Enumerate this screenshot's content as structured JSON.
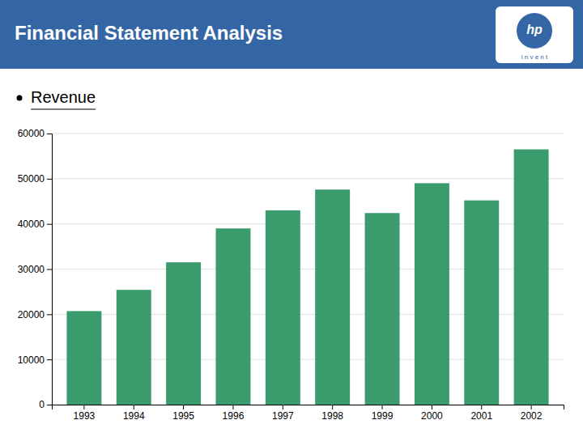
{
  "chart_data": {
    "type": "bar",
    "title": "Financial Statement Analysis",
    "subtitle": "Revenue",
    "annotations": [
      "hp",
      "i n v e n t"
    ],
    "categories": [
      "1993",
      "1994",
      "1995",
      "1996",
      "1997",
      "1998",
      "1999",
      "2000",
      "2001",
      "2002"
    ],
    "values": [
      20700,
      25400,
      31500,
      39000,
      43000,
      47600,
      42400,
      49000,
      45200,
      56500
    ],
    "color": "#3a9c6c",
    "ylim": [
      0,
      60000
    ],
    "yticks": [
      0,
      10000,
      20000,
      30000,
      40000,
      50000,
      60000
    ],
    "grid": true
  }
}
